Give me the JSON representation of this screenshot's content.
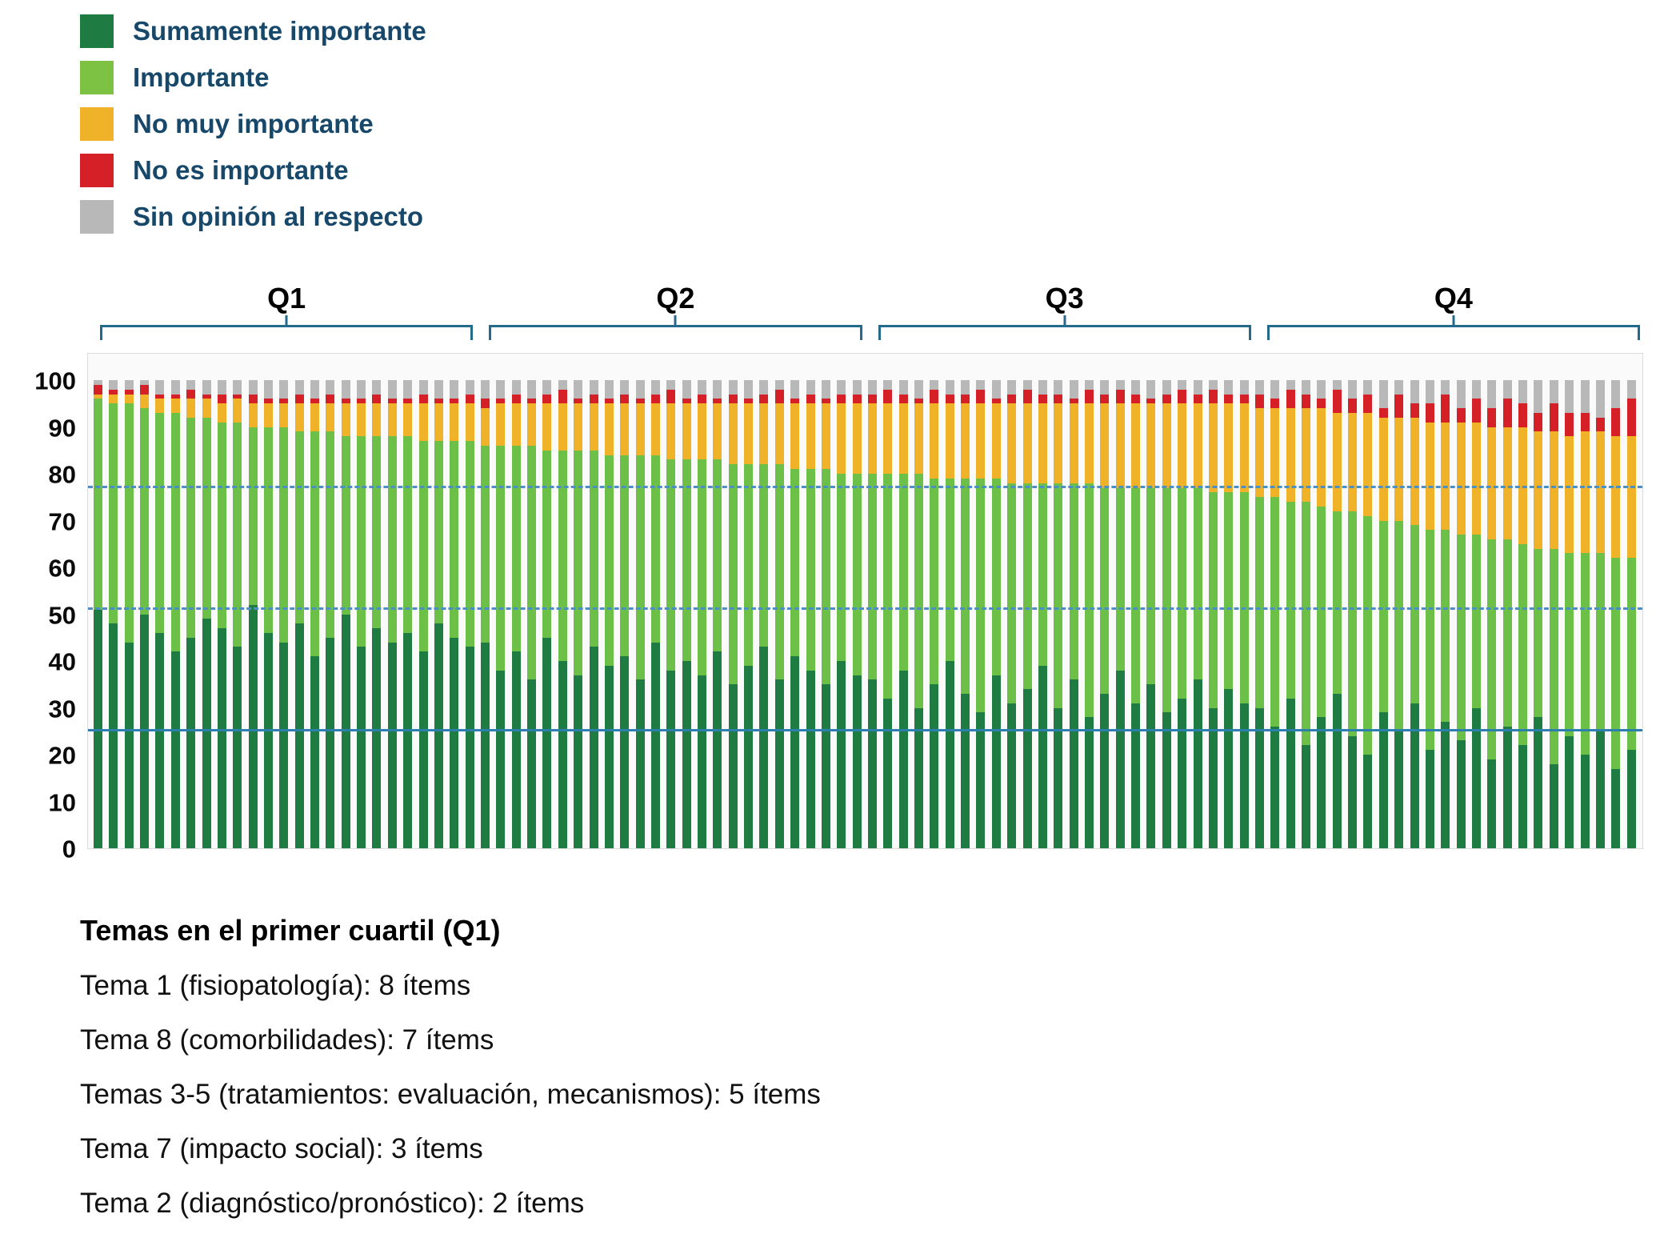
{
  "legend": {
    "items": [
      {
        "label": "Sumamente importante",
        "color": "#1e7b41"
      },
      {
        "label": "Importante",
        "color": "#7dc242"
      },
      {
        "label": "No muy importante",
        "color": "#f0b229"
      },
      {
        "label": "No es importante",
        "color": "#d62027"
      },
      {
        "label": "Sin opinión al respecto",
        "color": "#b8b8b8"
      }
    ],
    "text_color": "#17486a"
  },
  "footer": {
    "title": "Temas en el primer cuartil (Q1)",
    "lines": [
      "Tema 1 (fisiopatología): 8 ítems",
      "Tema 8 (comorbilidades): 7 ítems",
      "Temas 3-5 (tratamientos: evaluación, mecanismos): 5 ítems",
      "Tema 7 (impacto social): 3 ítems",
      "Tema 2 (diagnóstico/pronóstico): 2 ítems"
    ]
  },
  "chart_data": {
    "type": "bar",
    "stacked": true,
    "percent": true,
    "title": "",
    "xlabel": "",
    "ylabel": "",
    "ylim": [
      0,
      100
    ],
    "y_ticks": [
      0,
      10,
      20,
      30,
      40,
      50,
      60,
      70,
      80,
      90,
      100
    ],
    "legend_position": "top-left",
    "n_items": 100,
    "series_order": [
      "sumamente_importante",
      "importante",
      "no_muy_importante",
      "no_es_importante",
      "sin_opinion"
    ],
    "series_labels": {
      "sumamente_importante": "Sumamente importante",
      "importante": "Importante",
      "no_muy_importante": "No muy importante",
      "no_es_importante": "No es importante",
      "sin_opinion": "Sin opinión al respecto"
    },
    "colors": {
      "sumamente_importante": "#1e7b41",
      "importante": "#6cbf47",
      "no_muy_importante": "#f0b229",
      "no_es_importante": "#d62027",
      "sin_opinion": "#b8b8b8"
    },
    "groups": [
      {
        "label": "Q1",
        "items": [
          1,
          25
        ]
      },
      {
        "label": "Q2",
        "items": [
          26,
          50
        ]
      },
      {
        "label": "Q3",
        "items": [
          51,
          75
        ]
      },
      {
        "label": "Q4",
        "items": [
          76,
          100
        ]
      }
    ],
    "reference_lines": [
      {
        "value": 77,
        "style": "dashed",
        "color": "#4a90c4"
      },
      {
        "value": 51,
        "style": "dashed",
        "color": "#4a90c4"
      },
      {
        "value": 25,
        "style": "solid",
        "color": "#2d7fae"
      }
    ],
    "bars": [
      [
        51,
        45,
        1,
        2,
        1
      ],
      [
        48,
        47,
        2,
        1,
        2
      ],
      [
        44,
        51,
        2,
        1,
        2
      ],
      [
        50,
        44,
        3,
        2,
        1
      ],
      [
        46,
        47,
        3,
        1,
        3
      ],
      [
        42,
        51,
        3,
        1,
        3
      ],
      [
        45,
        47,
        4,
        2,
        2
      ],
      [
        49,
        43,
        4,
        1,
        3
      ],
      [
        47,
        44,
        4,
        2,
        3
      ],
      [
        43,
        48,
        5,
        1,
        3
      ],
      [
        52,
        38,
        5,
        2,
        3
      ],
      [
        46,
        44,
        5,
        1,
        4
      ],
      [
        44,
        46,
        5,
        1,
        4
      ],
      [
        48,
        41,
        6,
        2,
        3
      ],
      [
        41,
        48,
        6,
        1,
        4
      ],
      [
        45,
        44,
        6,
        2,
        3
      ],
      [
        50,
        38,
        7,
        1,
        4
      ],
      [
        43,
        45,
        7,
        1,
        4
      ],
      [
        47,
        41,
        7,
        2,
        3
      ],
      [
        44,
        44,
        7,
        1,
        4
      ],
      [
        46,
        42,
        7,
        1,
        4
      ],
      [
        42,
        45,
        8,
        2,
        3
      ],
      [
        48,
        39,
        8,
        1,
        4
      ],
      [
        45,
        42,
        8,
        1,
        4
      ],
      [
        43,
        44,
        8,
        2,
        3
      ],
      [
        44,
        42,
        8,
        2,
        4
      ],
      [
        38,
        48,
        9,
        1,
        4
      ],
      [
        42,
        44,
        9,
        2,
        3
      ],
      [
        36,
        50,
        9,
        1,
        4
      ],
      [
        45,
        40,
        10,
        2,
        3
      ],
      [
        40,
        45,
        10,
        3,
        2
      ],
      [
        37,
        48,
        10,
        1,
        4
      ],
      [
        43,
        42,
        10,
        2,
        3
      ],
      [
        39,
        45,
        11,
        1,
        4
      ],
      [
        41,
        43,
        11,
        2,
        3
      ],
      [
        36,
        48,
        11,
        1,
        4
      ],
      [
        44,
        40,
        11,
        2,
        3
      ],
      [
        38,
        45,
        12,
        3,
        2
      ],
      [
        40,
        43,
        12,
        1,
        4
      ],
      [
        37,
        46,
        12,
        2,
        3
      ],
      [
        42,
        41,
        12,
        1,
        4
      ],
      [
        35,
        47,
        13,
        2,
        3
      ],
      [
        39,
        43,
        13,
        1,
        4
      ],
      [
        43,
        39,
        13,
        2,
        3
      ],
      [
        36,
        46,
        13,
        3,
        2
      ],
      [
        41,
        40,
        14,
        1,
        4
      ],
      [
        38,
        43,
        14,
        2,
        3
      ],
      [
        35,
        46,
        14,
        1,
        4
      ],
      [
        40,
        40,
        15,
        2,
        3
      ],
      [
        37,
        43,
        15,
        2,
        3
      ],
      [
        36,
        44,
        15,
        2,
        3
      ],
      [
        32,
        48,
        15,
        3,
        2
      ],
      [
        38,
        42,
        15,
        2,
        3
      ],
      [
        30,
        50,
        15,
        1,
        4
      ],
      [
        35,
        44,
        16,
        3,
        2
      ],
      [
        40,
        39,
        16,
        2,
        3
      ],
      [
        33,
        46,
        16,
        2,
        3
      ],
      [
        29,
        50,
        16,
        3,
        2
      ],
      [
        37,
        42,
        16,
        1,
        4
      ],
      [
        31,
        47,
        17,
        2,
        3
      ],
      [
        34,
        44,
        17,
        3,
        2
      ],
      [
        39,
        39,
        17,
        2,
        3
      ],
      [
        30,
        48,
        17,
        2,
        3
      ],
      [
        36,
        42,
        17,
        1,
        4
      ],
      [
        28,
        50,
        17,
        3,
        2
      ],
      [
        33,
        44,
        18,
        2,
        3
      ],
      [
        38,
        39,
        18,
        3,
        2
      ],
      [
        31,
        46,
        18,
        2,
        3
      ],
      [
        35,
        42,
        18,
        1,
        4
      ],
      [
        29,
        48,
        18,
        2,
        3
      ],
      [
        32,
        45,
        18,
        3,
        2
      ],
      [
        36,
        41,
        18,
        2,
        3
      ],
      [
        30,
        46,
        19,
        3,
        2
      ],
      [
        34,
        42,
        19,
        2,
        3
      ],
      [
        31,
        45,
        19,
        2,
        3
      ],
      [
        30,
        45,
        19,
        3,
        3
      ],
      [
        26,
        49,
        19,
        2,
        4
      ],
      [
        32,
        42,
        20,
        4,
        2
      ],
      [
        22,
        52,
        20,
        3,
        3
      ],
      [
        28,
        45,
        21,
        2,
        4
      ],
      [
        33,
        39,
        21,
        5,
        2
      ],
      [
        24,
        48,
        21,
        3,
        4
      ],
      [
        20,
        51,
        22,
        4,
        3
      ],
      [
        29,
        41,
        22,
        2,
        6
      ],
      [
        25,
        45,
        22,
        5,
        3
      ],
      [
        31,
        38,
        23,
        3,
        5
      ],
      [
        21,
        47,
        23,
        4,
        5
      ],
      [
        27,
        41,
        23,
        6,
        3
      ],
      [
        23,
        44,
        24,
        3,
        6
      ],
      [
        30,
        37,
        24,
        5,
        4
      ],
      [
        19,
        47,
        24,
        4,
        6
      ],
      [
        26,
        40,
        24,
        6,
        4
      ],
      [
        22,
        43,
        25,
        5,
        5
      ],
      [
        28,
        36,
        25,
        4,
        7
      ],
      [
        18,
        46,
        25,
        6,
        5
      ],
      [
        24,
        39,
        25,
        5,
        7
      ],
      [
        20,
        43,
        26,
        4,
        7
      ],
      [
        25,
        38,
        26,
        3,
        8
      ],
      [
        17,
        45,
        26,
        6,
        6
      ],
      [
        21,
        41,
        26,
        8,
        4
      ]
    ]
  }
}
